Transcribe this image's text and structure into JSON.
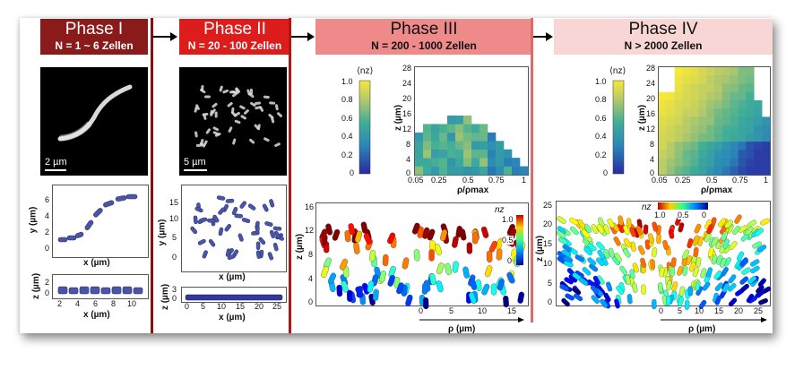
{
  "phases": [
    {
      "title": "Phase I",
      "subtitle": "N = 1 ~ 6 Zellen",
      "scale": "2 µm",
      "xy_ylabel": "y (µm)",
      "xy_xlabel": "x (µm)",
      "xy_yticks": [
        "0",
        "2",
        "4",
        "6"
      ],
      "xz_ylabel": "z (µm)",
      "xz_xlabel": "x (µm)",
      "xz_xticks": [
        "2",
        "4",
        "6",
        "8",
        "10"
      ],
      "xz_yticks": [
        "0",
        "2"
      ]
    },
    {
      "title": "Phase II",
      "subtitle": "N = 20 - 100 Zellen",
      "scale": "5 µm",
      "xy_ylabel": "y (µm)",
      "xy_xlabel": "x (µm)",
      "xy_yticks": [
        "0",
        "5",
        "10",
        "15"
      ],
      "xz_ylabel": "z (µm)",
      "xz_xlabel": "x (µm)",
      "xz_xticks": [
        "0",
        "5",
        "10",
        "15",
        "20",
        "25"
      ],
      "xz_yticks": [
        "0",
        "3"
      ]
    },
    {
      "title": "Phase III",
      "subtitle": "N = 200 - 1000 Zellen",
      "cbar_label": "⟨nz⟩",
      "cbar_ticks": [
        "1.0",
        "0.8",
        "0.6",
        "0.4",
        "0.2",
        "0"
      ],
      "heat_yticks": [
        "28",
        "24",
        "20",
        "16",
        "12",
        "8",
        "4",
        "0"
      ],
      "heat_xticks": [
        "0.05",
        "0.25",
        "0.5",
        "0.75",
        "1"
      ],
      "heat_ylabel": "z (µm)",
      "heat_xlabel": "ρ/ρmax",
      "side_yticks": [
        "16",
        "12",
        "8",
        "4",
        "0"
      ],
      "side_xticks": [
        "0",
        "5",
        "10",
        "15"
      ],
      "side_ylabel": "z (µm)",
      "side_xlabel": "ρ (µm)",
      "side_cbar_label": "nz",
      "side_cbar_ticks": [
        "1.0",
        "0.5",
        "0"
      ]
    },
    {
      "title": "Phase IV",
      "subtitle": "N > 2000 Zellen",
      "cbar_label": "⟨nz⟩",
      "cbar_ticks": [
        "1.0",
        "0.8",
        "0.6",
        "0.4",
        "0.2",
        "0"
      ],
      "heat_yticks": [
        "28",
        "24",
        "20",
        "16",
        "12",
        "8",
        "4",
        "0"
      ],
      "heat_xticks": [
        "0.05",
        "0.25",
        "0.5",
        "0.75",
        "1"
      ],
      "heat_ylabel": "z (µm)",
      "heat_xlabel": "ρ/ρmax",
      "side_yticks": [
        "25",
        "20",
        "15",
        "10",
        "5",
        "0"
      ],
      "side_xticks": [
        "0",
        "5",
        "10",
        "15",
        "20",
        "25"
      ],
      "side_ylabel": "z (µm)",
      "side_xlabel": "ρ (µm)",
      "side_cbar_label": "nz",
      "side_cbar_ticks": [
        "1.0",
        "0.5",
        "0"
      ]
    }
  ],
  "colors": {
    "phase1_header": "#8b1a1a",
    "phase2_header": "#dd1c1c",
    "phase3_header": "#ee8a8a",
    "phase4_header": "#f9d6d6",
    "phase1_text": "#ffffff",
    "phase2_text": "#ffffff",
    "phase3_text": "#111111",
    "phase4_text": "#111111",
    "divider": "#8b0f0f",
    "cell_blue": "#4a55a8"
  }
}
